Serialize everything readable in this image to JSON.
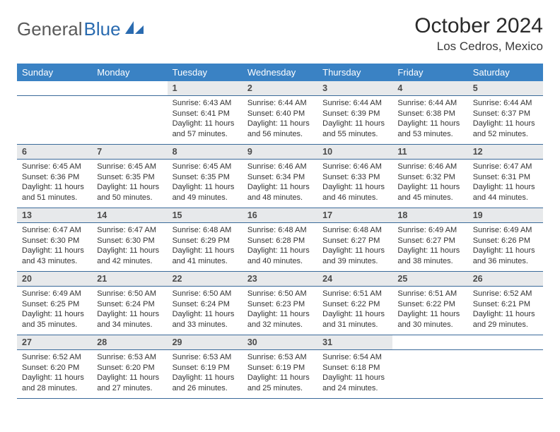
{
  "brand": {
    "part1": "General",
    "part2": "Blue"
  },
  "title": "October 2024",
  "location": "Los Cedros, Mexico",
  "colors": {
    "header_bg": "#3a82c4",
    "header_text": "#ffffff",
    "date_bg": "#e7e9eb",
    "rule": "#3a6a9a",
    "text": "#333333",
    "logo_gray": "#5a5a5a",
    "logo_blue": "#2a6bb0"
  },
  "fonts": {
    "month_title_pt": 30,
    "location_pt": 17,
    "day_header_pt": 13,
    "date_num_pt": 12.5,
    "detail_pt": 11
  },
  "day_names": [
    "Sunday",
    "Monday",
    "Tuesday",
    "Wednesday",
    "Thursday",
    "Friday",
    "Saturday"
  ],
  "weeks": [
    [
      null,
      null,
      {
        "n": "1",
        "sr": "Sunrise: 6:43 AM",
        "ss": "Sunset: 6:41 PM",
        "d1": "Daylight: 11 hours",
        "d2": "and 57 minutes."
      },
      {
        "n": "2",
        "sr": "Sunrise: 6:44 AM",
        "ss": "Sunset: 6:40 PM",
        "d1": "Daylight: 11 hours",
        "d2": "and 56 minutes."
      },
      {
        "n": "3",
        "sr": "Sunrise: 6:44 AM",
        "ss": "Sunset: 6:39 PM",
        "d1": "Daylight: 11 hours",
        "d2": "and 55 minutes."
      },
      {
        "n": "4",
        "sr": "Sunrise: 6:44 AM",
        "ss": "Sunset: 6:38 PM",
        "d1": "Daylight: 11 hours",
        "d2": "and 53 minutes."
      },
      {
        "n": "5",
        "sr": "Sunrise: 6:44 AM",
        "ss": "Sunset: 6:37 PM",
        "d1": "Daylight: 11 hours",
        "d2": "and 52 minutes."
      }
    ],
    [
      {
        "n": "6",
        "sr": "Sunrise: 6:45 AM",
        "ss": "Sunset: 6:36 PM",
        "d1": "Daylight: 11 hours",
        "d2": "and 51 minutes."
      },
      {
        "n": "7",
        "sr": "Sunrise: 6:45 AM",
        "ss": "Sunset: 6:35 PM",
        "d1": "Daylight: 11 hours",
        "d2": "and 50 minutes."
      },
      {
        "n": "8",
        "sr": "Sunrise: 6:45 AM",
        "ss": "Sunset: 6:35 PM",
        "d1": "Daylight: 11 hours",
        "d2": "and 49 minutes."
      },
      {
        "n": "9",
        "sr": "Sunrise: 6:46 AM",
        "ss": "Sunset: 6:34 PM",
        "d1": "Daylight: 11 hours",
        "d2": "and 48 minutes."
      },
      {
        "n": "10",
        "sr": "Sunrise: 6:46 AM",
        "ss": "Sunset: 6:33 PM",
        "d1": "Daylight: 11 hours",
        "d2": "and 46 minutes."
      },
      {
        "n": "11",
        "sr": "Sunrise: 6:46 AM",
        "ss": "Sunset: 6:32 PM",
        "d1": "Daylight: 11 hours",
        "d2": "and 45 minutes."
      },
      {
        "n": "12",
        "sr": "Sunrise: 6:47 AM",
        "ss": "Sunset: 6:31 PM",
        "d1": "Daylight: 11 hours",
        "d2": "and 44 minutes."
      }
    ],
    [
      {
        "n": "13",
        "sr": "Sunrise: 6:47 AM",
        "ss": "Sunset: 6:30 PM",
        "d1": "Daylight: 11 hours",
        "d2": "and 43 minutes."
      },
      {
        "n": "14",
        "sr": "Sunrise: 6:47 AM",
        "ss": "Sunset: 6:30 PM",
        "d1": "Daylight: 11 hours",
        "d2": "and 42 minutes."
      },
      {
        "n": "15",
        "sr": "Sunrise: 6:48 AM",
        "ss": "Sunset: 6:29 PM",
        "d1": "Daylight: 11 hours",
        "d2": "and 41 minutes."
      },
      {
        "n": "16",
        "sr": "Sunrise: 6:48 AM",
        "ss": "Sunset: 6:28 PM",
        "d1": "Daylight: 11 hours",
        "d2": "and 40 minutes."
      },
      {
        "n": "17",
        "sr": "Sunrise: 6:48 AM",
        "ss": "Sunset: 6:27 PM",
        "d1": "Daylight: 11 hours",
        "d2": "and 39 minutes."
      },
      {
        "n": "18",
        "sr": "Sunrise: 6:49 AM",
        "ss": "Sunset: 6:27 PM",
        "d1": "Daylight: 11 hours",
        "d2": "and 38 minutes."
      },
      {
        "n": "19",
        "sr": "Sunrise: 6:49 AM",
        "ss": "Sunset: 6:26 PM",
        "d1": "Daylight: 11 hours",
        "d2": "and 36 minutes."
      }
    ],
    [
      {
        "n": "20",
        "sr": "Sunrise: 6:49 AM",
        "ss": "Sunset: 6:25 PM",
        "d1": "Daylight: 11 hours",
        "d2": "and 35 minutes."
      },
      {
        "n": "21",
        "sr": "Sunrise: 6:50 AM",
        "ss": "Sunset: 6:24 PM",
        "d1": "Daylight: 11 hours",
        "d2": "and 34 minutes."
      },
      {
        "n": "22",
        "sr": "Sunrise: 6:50 AM",
        "ss": "Sunset: 6:24 PM",
        "d1": "Daylight: 11 hours",
        "d2": "and 33 minutes."
      },
      {
        "n": "23",
        "sr": "Sunrise: 6:50 AM",
        "ss": "Sunset: 6:23 PM",
        "d1": "Daylight: 11 hours",
        "d2": "and 32 minutes."
      },
      {
        "n": "24",
        "sr": "Sunrise: 6:51 AM",
        "ss": "Sunset: 6:22 PM",
        "d1": "Daylight: 11 hours",
        "d2": "and 31 minutes."
      },
      {
        "n": "25",
        "sr": "Sunrise: 6:51 AM",
        "ss": "Sunset: 6:22 PM",
        "d1": "Daylight: 11 hours",
        "d2": "and 30 minutes."
      },
      {
        "n": "26",
        "sr": "Sunrise: 6:52 AM",
        "ss": "Sunset: 6:21 PM",
        "d1": "Daylight: 11 hours",
        "d2": "and 29 minutes."
      }
    ],
    [
      {
        "n": "27",
        "sr": "Sunrise: 6:52 AM",
        "ss": "Sunset: 6:20 PM",
        "d1": "Daylight: 11 hours",
        "d2": "and 28 minutes."
      },
      {
        "n": "28",
        "sr": "Sunrise: 6:53 AM",
        "ss": "Sunset: 6:20 PM",
        "d1": "Daylight: 11 hours",
        "d2": "and 27 minutes."
      },
      {
        "n": "29",
        "sr": "Sunrise: 6:53 AM",
        "ss": "Sunset: 6:19 PM",
        "d1": "Daylight: 11 hours",
        "d2": "and 26 minutes."
      },
      {
        "n": "30",
        "sr": "Sunrise: 6:53 AM",
        "ss": "Sunset: 6:19 PM",
        "d1": "Daylight: 11 hours",
        "d2": "and 25 minutes."
      },
      {
        "n": "31",
        "sr": "Sunrise: 6:54 AM",
        "ss": "Sunset: 6:18 PM",
        "d1": "Daylight: 11 hours",
        "d2": "and 24 minutes."
      },
      null,
      null
    ]
  ]
}
